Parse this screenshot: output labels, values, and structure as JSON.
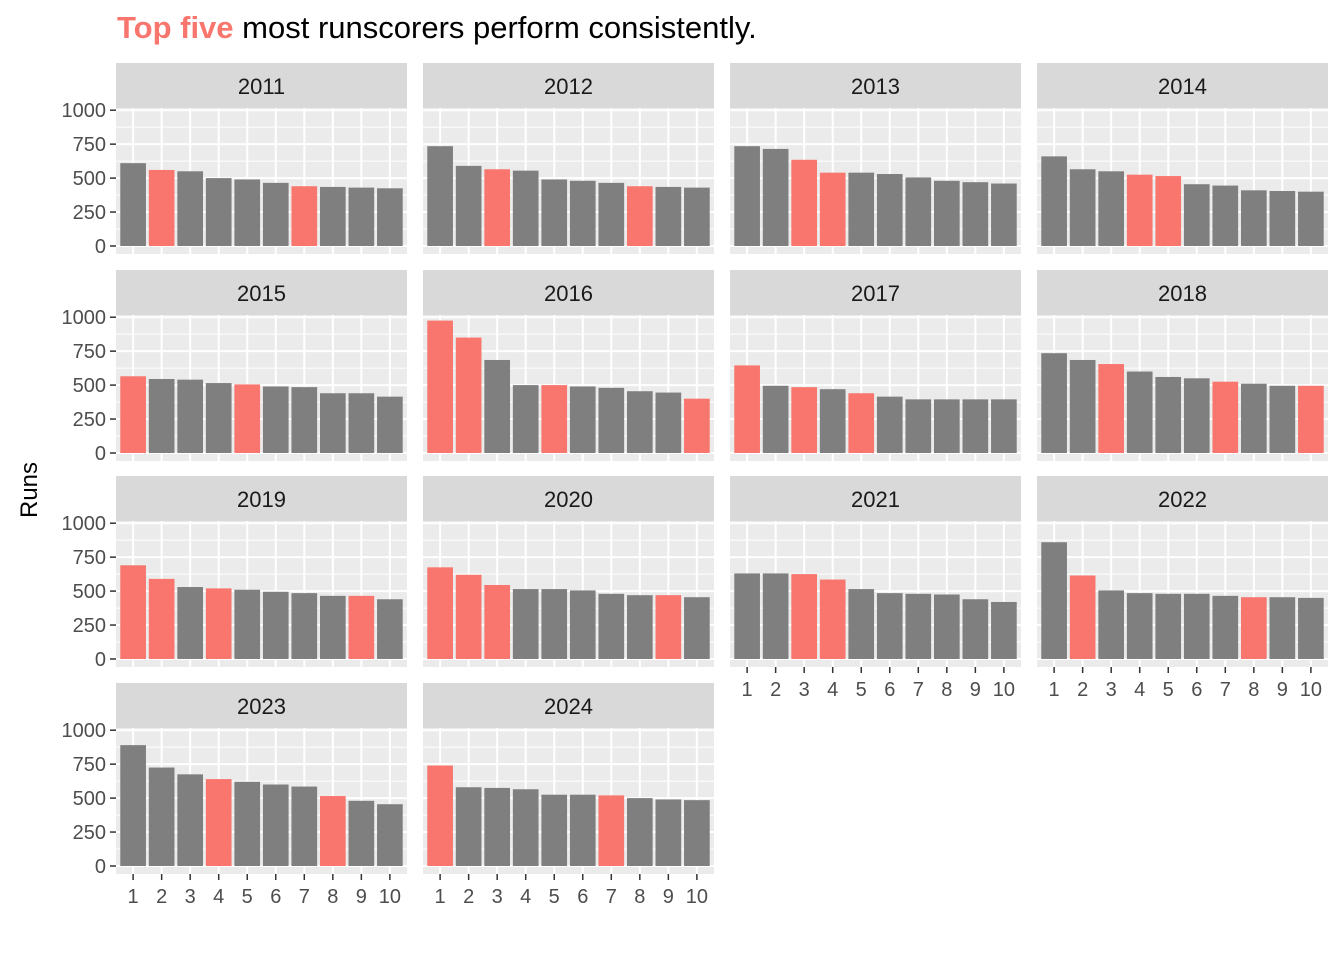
{
  "title": {
    "highlight": "Top five",
    "rest": "most runscorers perform consistently."
  },
  "colors": {
    "highlight": "#F8766D",
    "other": "#7F7F7F",
    "panel_bg": "#EBEBEB",
    "strip_bg": "#D9D9D9",
    "grid": "#FFFFFF"
  },
  "chart_data": {
    "type": "bar",
    "facet_layout": "wrap 4 columns",
    "ylabel": "Runs",
    "xlabel": "",
    "ylim": [
      0,
      1000
    ],
    "yticks": [
      0,
      250,
      500,
      750,
      1000
    ],
    "categories": [
      "1",
      "2",
      "3",
      "4",
      "5",
      "6",
      "7",
      "8",
      "9",
      "10"
    ],
    "legend": "none",
    "grid": true,
    "panels": [
      {
        "year": "2011",
        "values": [
          610,
          560,
          550,
          500,
          490,
          465,
          440,
          435,
          430,
          425
        ],
        "top_five": [
          2,
          7
        ]
      },
      {
        "year": "2012",
        "values": [
          735,
          590,
          565,
          555,
          490,
          480,
          465,
          440,
          435,
          430
        ],
        "top_five": [
          3,
          8
        ]
      },
      {
        "year": "2013",
        "values": [
          735,
          715,
          635,
          540,
          540,
          530,
          505,
          480,
          470,
          460
        ],
        "top_five": [
          3,
          4
        ]
      },
      {
        "year": "2014",
        "values": [
          660,
          565,
          550,
          525,
          515,
          455,
          445,
          410,
          405,
          400
        ],
        "top_five": [
          4,
          5
        ]
      },
      {
        "year": "2015",
        "values": [
          565,
          545,
          540,
          515,
          505,
          490,
          485,
          440,
          440,
          415
        ],
        "top_five": [
          1,
          5
        ]
      },
      {
        "year": "2016",
        "values": [
          975,
          850,
          685,
          500,
          500,
          490,
          480,
          455,
          445,
          400
        ],
        "top_five": [
          1,
          2,
          5,
          10
        ]
      },
      {
        "year": "2017",
        "values": [
          645,
          495,
          485,
          470,
          440,
          415,
          395,
          395,
          395,
          395
        ],
        "top_five": [
          1,
          3,
          5
        ]
      },
      {
        "year": "2018",
        "values": [
          735,
          685,
          655,
          600,
          560,
          550,
          525,
          510,
          495,
          495
        ],
        "top_five": [
          3,
          7,
          10
        ]
      },
      {
        "year": "2019",
        "values": [
          690,
          590,
          530,
          520,
          510,
          495,
          485,
          465,
          465,
          440
        ],
        "top_five": [
          1,
          2,
          4,
          9
        ]
      },
      {
        "year": "2020",
        "values": [
          675,
          620,
          545,
          515,
          515,
          505,
          480,
          470,
          470,
          455
        ],
        "top_five": [
          1,
          2,
          3,
          9
        ]
      },
      {
        "year": "2021",
        "values": [
          630,
          630,
          625,
          585,
          515,
          485,
          480,
          475,
          440,
          420
        ],
        "top_five": [
          3,
          4
        ]
      },
      {
        "year": "2022",
        "values": [
          860,
          615,
          505,
          485,
          480,
          480,
          465,
          455,
          455,
          450
        ],
        "top_five": [
          2,
          8
        ]
      },
      {
        "year": "2023",
        "values": [
          890,
          725,
          675,
          640,
          620,
          600,
          585,
          515,
          480,
          455
        ],
        "top_five": [
          4,
          8
        ]
      },
      {
        "year": "2024",
        "values": [
          740,
          580,
          575,
          565,
          525,
          525,
          520,
          500,
          490,
          485
        ],
        "top_five": [
          1,
          7
        ]
      }
    ]
  }
}
